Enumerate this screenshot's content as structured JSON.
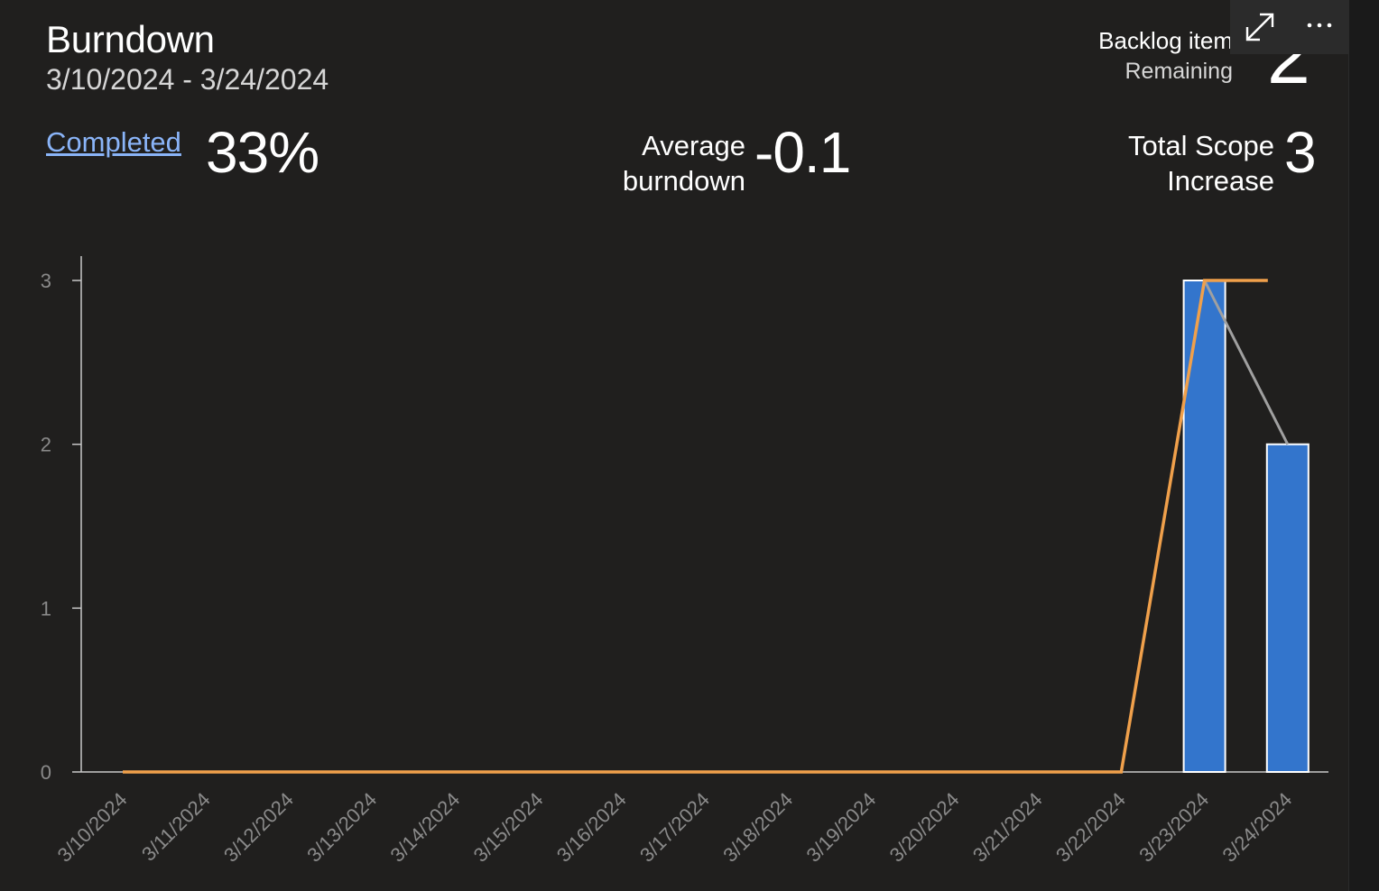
{
  "widget": {
    "title": "Burndown",
    "date_range": "3/10/2024 - 3/24/2024"
  },
  "metrics": {
    "completed_label": "Completed",
    "completed_value": "33%",
    "average_label_line1": "Average",
    "average_label_line2": "burndown",
    "average_value": "-0.1",
    "scope_label_line1": "Total Scope",
    "scope_label_line2": "Increase",
    "scope_value": "3",
    "backlog_label_line1": "Backlog item",
    "backlog_label_line2": "Remaining",
    "backlog_value": "2"
  },
  "toolbar": {
    "expand_icon": "expand-icon",
    "more_icon": "more-options-icon"
  },
  "colors": {
    "bar": "#3375cc",
    "bar_border": "#ffffff",
    "scope_line": "#f0a04b",
    "trend_line": "#a0a0a0",
    "axis": "#c8c8c8",
    "tick_label": "#8a8a8a"
  },
  "chart_data": {
    "type": "bar",
    "categories": [
      "3/10/2024",
      "3/11/2024",
      "3/12/2024",
      "3/13/2024",
      "3/14/2024",
      "3/15/2024",
      "3/16/2024",
      "3/17/2024",
      "3/18/2024",
      "3/19/2024",
      "3/20/2024",
      "3/21/2024",
      "3/22/2024",
      "3/23/2024",
      "3/24/2024"
    ],
    "values": [
      0,
      0,
      0,
      0,
      0,
      0,
      0,
      0,
      0,
      0,
      0,
      0,
      0,
      3,
      2
    ],
    "scope_line": [
      0,
      0,
      0,
      0,
      0,
      0,
      0,
      0,
      0,
      0,
      0,
      0,
      0,
      3,
      3
    ],
    "trend_line": [
      null,
      null,
      null,
      null,
      null,
      null,
      null,
      null,
      null,
      null,
      null,
      null,
      null,
      3,
      2
    ],
    "yticks": [
      "0",
      "1",
      "2",
      "3"
    ],
    "ylim": [
      0,
      3
    ],
    "grid": false,
    "legend": "none"
  }
}
